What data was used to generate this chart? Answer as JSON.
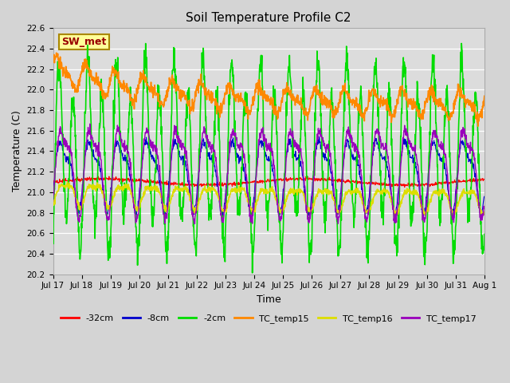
{
  "title": "Soil Temperature Profile C2",
  "xlabel": "Time",
  "ylabel": "Temperature (C)",
  "ylim": [
    20.2,
    22.6
  ],
  "days": 15,
  "background_color": "#dcdcdc",
  "plot_bg_color": "#dcdcdc",
  "fig_bg_color": "#d4d4d4",
  "sw_met_label": "SW_met",
  "sw_met_color": "#990000",
  "sw_met_bg": "#ffff99",
  "sw_met_border": "#aa8800",
  "legend_entries": [
    "-32cm",
    "-8cm",
    "-2cm",
    "TC_temp15",
    "TC_temp16",
    "TC_temp17"
  ],
  "legend_colors": [
    "#ff0000",
    "#0000cc",
    "#00dd00",
    "#ff8800",
    "#dddd00",
    "#9900bb"
  ],
  "tick_labels": [
    "Jul 17",
    "Jul 18",
    "Jul 19",
    "Jul 20",
    "Jul 21",
    "Jul 22",
    "Jul 23",
    "Jul 24",
    "Jul 25",
    "Jul 26",
    "Jul 27",
    "Jul 28",
    "Jul 29",
    "Jul 30",
    "Jul 31",
    "Aug 1"
  ]
}
